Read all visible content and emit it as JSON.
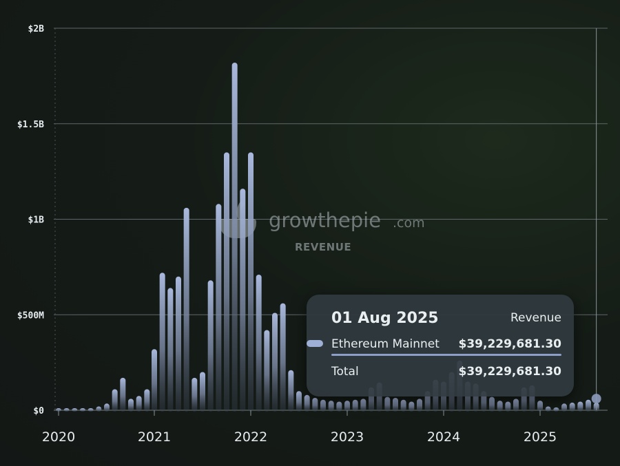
{
  "chart_data": {
    "type": "bar",
    "title": "",
    "watermark": {
      "brand": "growthepie",
      "suffix": ".com",
      "subtitle": "REVENUE"
    },
    "series": [
      {
        "name": "Ethereum Mainnet",
        "color": "#9fb0d6",
        "dates": [
          "2020-01",
          "2020-02",
          "2020-03",
          "2020-04",
          "2020-05",
          "2020-06",
          "2020-07",
          "2020-08",
          "2020-09",
          "2020-10",
          "2020-11",
          "2020-12",
          "2021-01",
          "2021-02",
          "2021-03",
          "2021-04",
          "2021-05",
          "2021-06",
          "2021-07",
          "2021-08",
          "2021-09",
          "2021-10",
          "2021-11",
          "2021-12",
          "2022-01",
          "2022-02",
          "2022-03",
          "2022-04",
          "2022-05",
          "2022-06",
          "2022-07",
          "2022-08",
          "2022-09",
          "2022-10",
          "2022-11",
          "2022-12",
          "2023-01",
          "2023-02",
          "2023-03",
          "2023-04",
          "2023-05",
          "2023-06",
          "2023-07",
          "2023-08",
          "2023-09",
          "2023-10",
          "2023-11",
          "2023-12",
          "2024-01",
          "2024-02",
          "2024-03",
          "2024-04",
          "2024-05",
          "2024-06",
          "2024-07",
          "2024-08",
          "2024-09",
          "2024-10",
          "2024-11",
          "2024-12",
          "2025-01",
          "2025-02",
          "2025-03",
          "2025-04",
          "2025-05",
          "2025-06",
          "2025-07",
          "2025-08"
        ],
        "values": [
          3,
          2,
          4,
          2,
          10,
          20,
          35,
          110,
          170,
          60,
          75,
          110,
          320,
          720,
          640,
          700,
          1060,
          170,
          200,
          680,
          1080,
          1350,
          1820,
          1160,
          1350,
          710,
          420,
          510,
          560,
          210,
          100,
          80,
          65,
          55,
          50,
          45,
          50,
          55,
          60,
          120,
          145,
          70,
          65,
          55,
          45,
          60,
          100,
          160,
          150,
          200,
          260,
          150,
          140,
          100,
          70,
          50,
          45,
          60,
          120,
          130,
          50,
          20,
          15,
          35,
          40,
          45,
          55,
          39.229681
        ]
      }
    ],
    "value_unit": "$M",
    "yticks": [
      "$0",
      "$500M",
      "$1B",
      "$1.5B",
      "$2B"
    ],
    "ytick_values": [
      0,
      500,
      1000,
      1500,
      2000
    ],
    "ylim": [
      0,
      2000
    ],
    "xticks": [
      "2020",
      "2021",
      "2022",
      "2023",
      "2024",
      "2025"
    ],
    "grid": true,
    "legend": "none"
  },
  "tooltip": {
    "date": "01 Aug 2025",
    "metric": "Revenue",
    "series_label": "Ethereum Mainnet",
    "series_value": "$39,229,681.30",
    "total_label": "Total",
    "total_value": "$39,229,681.30",
    "swatch_color": "#9fb0d6"
  }
}
